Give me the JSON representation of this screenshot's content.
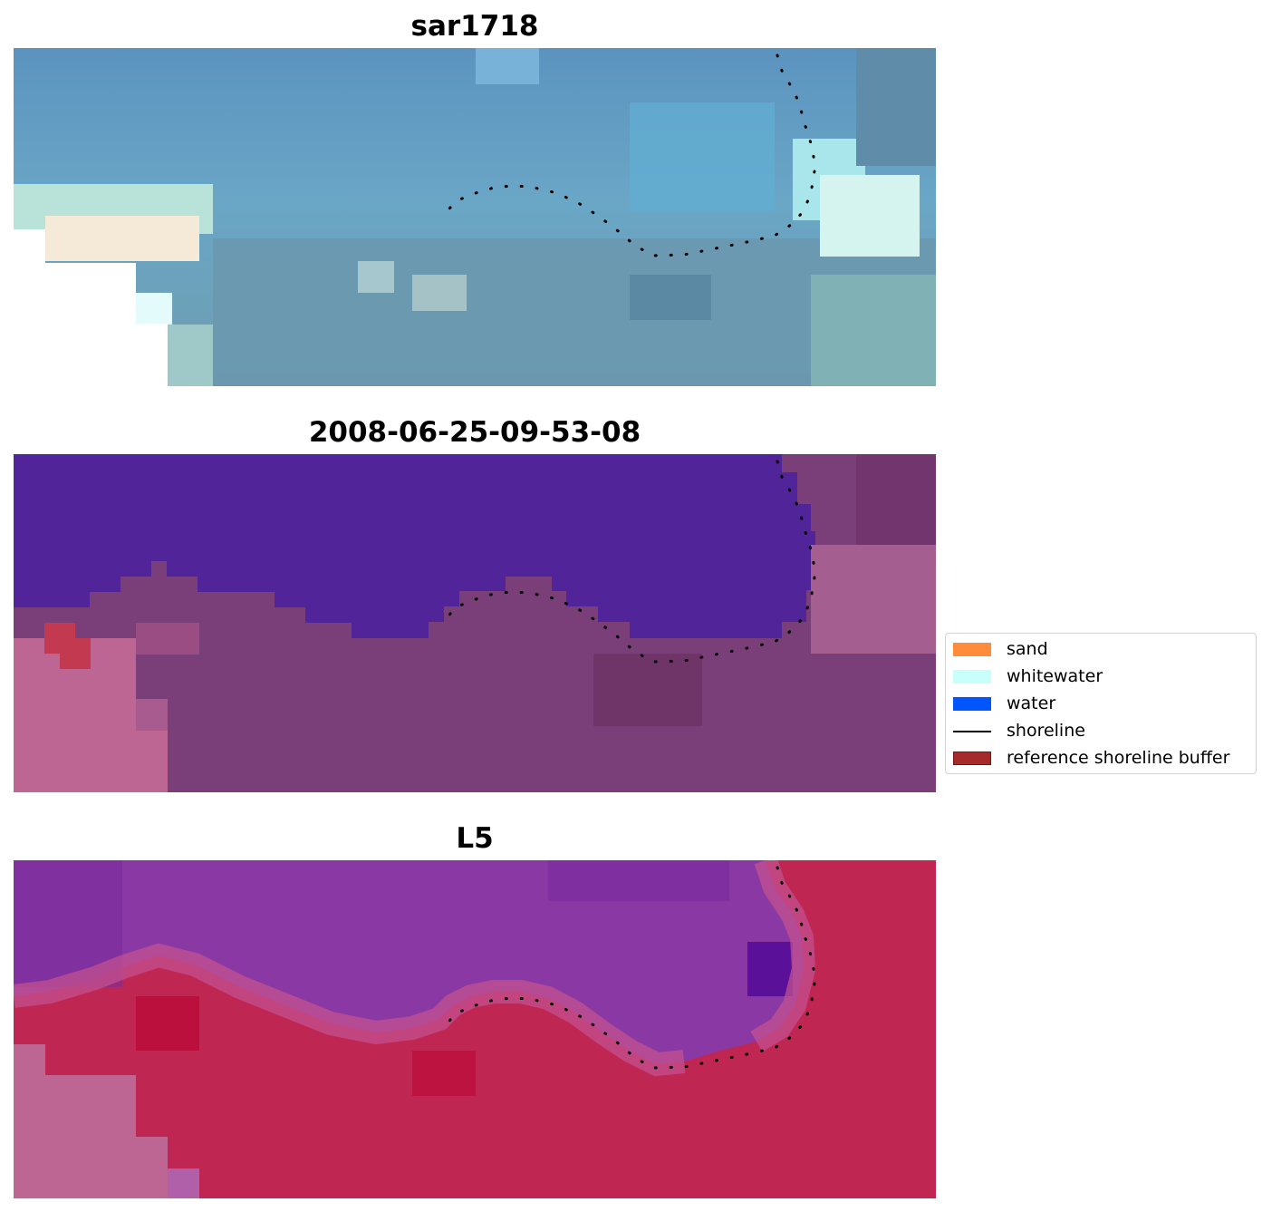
{
  "panels": [
    {
      "title": "sar1718"
    },
    {
      "title": "2008-06-25-09-53-08"
    },
    {
      "title": "L5"
    }
  ],
  "legend": {
    "items": [
      {
        "label": "sand",
        "color": "#ff8c3a",
        "kind": "patch"
      },
      {
        "label": "whitewater",
        "color": "#c8fffa",
        "kind": "patch"
      },
      {
        "label": "water",
        "color": "#0055ff",
        "kind": "patch"
      },
      {
        "label": "shoreline",
        "color": "#000000",
        "kind": "line"
      },
      {
        "label": "reference shoreline buffer",
        "color": "#a52a2a",
        "kind": "patch"
      }
    ]
  },
  "colors": {
    "sar_water": "#5d96c0",
    "sar_land": "#7aa5b5",
    "class_water": "#52249a",
    "class_land": "#7a3f78",
    "class_bg": "#bd6694",
    "l5_water": "#8a38a4",
    "l5_land": "#c02652",
    "l5_bg": "#bd6694"
  }
}
